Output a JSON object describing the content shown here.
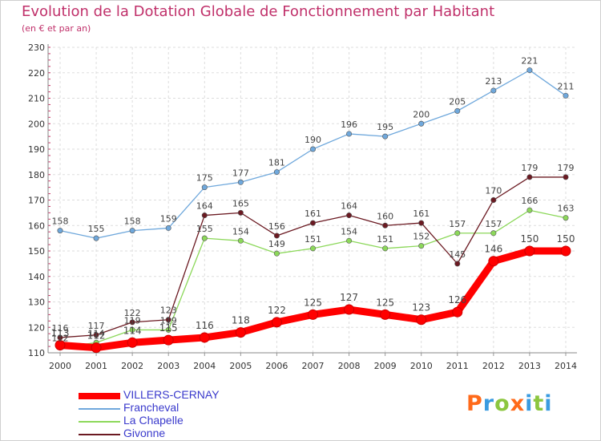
{
  "chart_data": {
    "type": "line",
    "title": "Evolution de la Dotation Globale de Fonctionnement par Habitant",
    "subtitle": "(en € et par an)",
    "xlabel": "",
    "ylabel": "",
    "categories": [
      "2000",
      "2001",
      "2002",
      "2003",
      "2004",
      "2005",
      "2006",
      "2007",
      "2008",
      "2009",
      "2010",
      "2011",
      "2012",
      "2013",
      "2014"
    ],
    "ylim": [
      110,
      230
    ],
    "yticks": [
      110,
      120,
      130,
      140,
      150,
      160,
      170,
      180,
      190,
      200,
      210,
      220,
      230
    ],
    "grid": true,
    "legend_position": "bottom-left",
    "series": [
      {
        "name": "VILLERS-CERNAY",
        "color": "#ff0000",
        "values": [
          113,
          112,
          114,
          115,
          116,
          118,
          122,
          125,
          127,
          125,
          123,
          126,
          146,
          150,
          150
        ]
      },
      {
        "name": "Francheval",
        "color": "#6fa8dc",
        "values": [
          158,
          155,
          158,
          159,
          175,
          177,
          181,
          190,
          196,
          195,
          200,
          205,
          213,
          221,
          211
        ]
      },
      {
        "name": "La Chapelle",
        "color": "#8cd85a",
        "values": [
          112,
          114,
          119,
          119,
          155,
          154,
          149,
          151,
          154,
          151,
          152,
          157,
          157,
          166,
          163
        ]
      },
      {
        "name": "Givonne",
        "color": "#6b1a22",
        "values": [
          116,
          117,
          122,
          123,
          164,
          165,
          156,
          161,
          164,
          160,
          161,
          145,
          170,
          179,
          179
        ]
      }
    ]
  },
  "logo": {
    "letters": [
      "P",
      "r",
      "o",
      "x",
      "i",
      "t",
      "i"
    ],
    "colors": [
      "#ff6a1a",
      "#3a9be0",
      "#8cc63f",
      "#ff6a1a",
      "#3a9be0",
      "#8cc63f",
      "#3a9be0"
    ]
  }
}
